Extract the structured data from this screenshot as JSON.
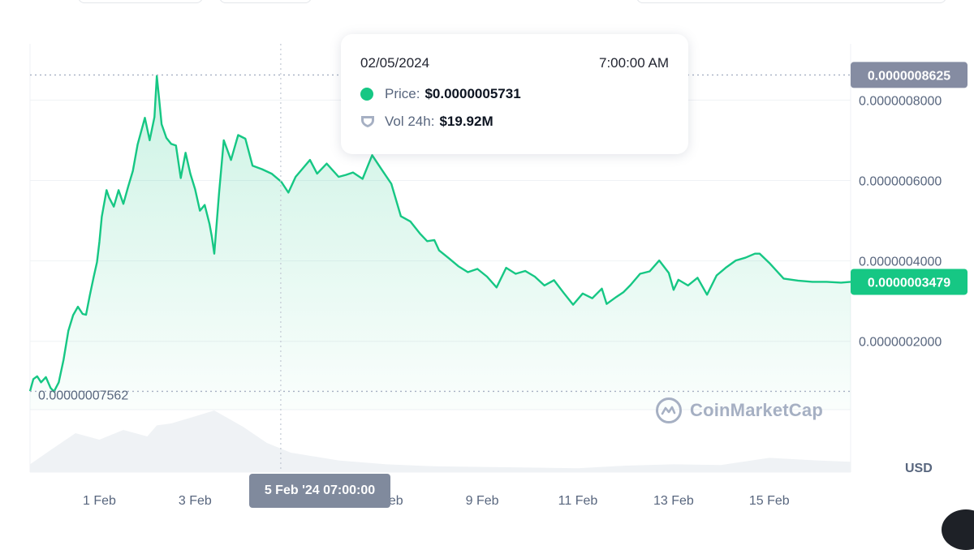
{
  "chart_data": {
    "type": "area",
    "currency_label": "USD",
    "y_ticks": [
      "0.0000008000",
      "0.0000006000",
      "0.0000004000",
      "0.0000002000"
    ],
    "y_tick_values": [
      8e-07,
      6e-07,
      4e-07,
      2e-07
    ],
    "ylim": [
      3e-08,
      9.4e-07
    ],
    "x_ticks": [
      "1 Feb",
      "3 Feb",
      "5 Feb",
      "7 Feb",
      "9 Feb",
      "11 Feb",
      "13 Feb",
      "15 Feb"
    ],
    "x_tick_days": [
      1,
      3,
      5,
      7,
      9,
      11,
      13,
      15
    ],
    "xlim_days": [
      -0.45,
      16.7
    ],
    "high": {
      "label": "0.0000008625",
      "value": 8.625e-07
    },
    "low": {
      "label": "0.00000007562",
      "value": 7.562e-08
    },
    "current": {
      "label": "0.0000003479",
      "value": 3.479e-07
    },
    "crosshair": {
      "day": 4.79,
      "label": "5 Feb '24 07:00:00"
    },
    "series": [
      {
        "x_days": [
          -0.45,
          -0.38,
          -0.3,
          -0.22,
          -0.12,
          -0.02,
          0.05,
          0.15,
          0.25,
          0.35,
          0.45,
          0.55,
          0.65,
          0.72,
          0.8,
          0.88,
          0.95,
          1.0,
          1.05,
          1.15,
          1.2,
          1.3,
          1.4,
          1.5,
          1.6,
          1.7,
          1.8,
          1.95,
          2.05,
          2.15,
          2.2,
          2.25,
          2.3,
          2.4,
          2.5,
          2.6,
          2.7,
          2.8,
          2.9,
          3.0,
          3.1,
          3.2,
          3.3,
          3.35,
          3.4,
          3.5,
          3.6,
          3.75,
          3.9,
          4.05,
          4.2,
          4.4,
          4.6,
          4.8,
          4.95,
          5.1,
          5.25,
          5.4,
          5.55,
          5.75,
          6.0,
          6.15,
          6.3,
          6.5,
          6.7,
          6.9,
          7.1,
          7.3,
          7.5,
          7.7,
          7.85,
          8.0,
          8.1,
          8.3,
          8.5,
          8.7,
          8.9,
          9.1,
          9.3,
          9.5,
          9.7,
          9.9,
          10.1,
          10.3,
          10.5,
          10.7,
          10.9,
          11.1,
          11.3,
          11.5,
          11.6,
          11.8,
          11.95,
          12.1,
          12.3,
          12.5,
          12.7,
          12.9,
          13.0,
          13.1,
          13.3,
          13.5,
          13.7,
          13.9,
          14.1,
          14.3,
          14.5,
          14.7,
          14.8,
          15.0,
          15.3,
          15.6,
          15.9,
          16.2,
          16.5,
          16.7
        ],
        "values": [
          7.6e-08,
          1.06e-07,
          1.13e-07,
          9.8e-08,
          1.11e-07,
          8.4e-08,
          7.5e-08,
          9.8e-08,
          1.54e-07,
          2.26e-07,
          2.65e-07,
          2.86e-07,
          2.68e-07,
          2.66e-07,
          3.15e-07,
          3.6e-07,
          3.97e-07,
          4.48e-07,
          5.1e-07,
          5.76e-07,
          5.58e-07,
          5.35e-07,
          5.76e-07,
          5.42e-07,
          5.84e-07,
          6.24e-07,
          6.9e-07,
          7.56e-07,
          7e-07,
          7.58e-07,
          8.6e-07,
          8e-07,
          7.4e-07,
          7.06e-07,
          6.91e-07,
          6.87e-07,
          6.06e-07,
          6.69e-07,
          6.17e-07,
          5.78e-07,
          5.25e-07,
          5.39e-07,
          4.92e-07,
          4.6e-07,
          4.18e-07,
          5.69e-07,
          7e-07,
          6.51e-07,
          7.13e-07,
          7.04e-07,
          6.37e-07,
          6.28e-07,
          6.17e-07,
          5.97e-07,
          5.7e-07,
          6.09e-07,
          6.3e-07,
          6.51e-07,
          6.17e-07,
          6.42e-07,
          6.09e-07,
          6.14e-07,
          6.2e-07,
          6.04e-07,
          6.63e-07,
          6.27e-07,
          5.92e-07,
          5.11e-07,
          4.98e-07,
          4.68e-07,
          4.49e-07,
          4.52e-07,
          4.26e-07,
          4.07e-07,
          3.87e-07,
          3.72e-07,
          3.8e-07,
          3.61e-07,
          3.34e-07,
          3.83e-07,
          3.68e-07,
          3.75e-07,
          3.61e-07,
          3.39e-07,
          3.52e-07,
          3.21e-07,
          2.91e-07,
          3.19e-07,
          3.07e-07,
          3.31e-07,
          2.93e-07,
          3.1e-07,
          3.22e-07,
          3.4e-07,
          3.68e-07,
          3.74e-07,
          4.01e-07,
          3.7e-07,
          3.28e-07,
          3.53e-07,
          3.39e-07,
          3.58e-07,
          3.16e-07,
          3.64e-07,
          3.84e-07,
          4.01e-07,
          4.08e-07,
          4.18e-07,
          4.18e-07,
          3.95e-07,
          3.56e-07,
          3.51e-07,
          3.48e-07,
          3.48e-07,
          3.46e-07,
          3.48e-07
        ]
      }
    ],
    "volume": {
      "x_days": [
        -0.45,
        0.0,
        0.5,
        1.0,
        1.5,
        2.0,
        2.2,
        2.5,
        3.0,
        3.4,
        4.0,
        4.5,
        5.0,
        5.5,
        6.0,
        7.0,
        8.0,
        9.0,
        10.0,
        11.0,
        12.0,
        13.0,
        14.0,
        15.0,
        16.0,
        16.7
      ],
      "rel": [
        0.12,
        0.35,
        0.6,
        0.5,
        0.65,
        0.55,
        0.72,
        0.75,
        0.86,
        0.95,
        0.7,
        0.45,
        0.3,
        0.24,
        0.18,
        0.12,
        0.09,
        0.08,
        0.07,
        0.06,
        0.1,
        0.12,
        0.11,
        0.22,
        0.18,
        0.16
      ]
    }
  },
  "tooltip": {
    "date": "02/05/2024",
    "time": "7:00:00 AM",
    "price_label": "Price:",
    "price_value": "$0.0000005731",
    "vol_label": "Vol 24h:",
    "vol_value": "$19.92M"
  },
  "watermark": {
    "text": "CoinMarketCap"
  },
  "colors": {
    "line": "#16c784",
    "area_top": "#c9f1e0",
    "grid": "#eff2f5",
    "high_tag": "#858ca2",
    "current_tag": "#16c784",
    "crosshair_tag": "#808a9d",
    "volume": "#eff2f5"
  }
}
